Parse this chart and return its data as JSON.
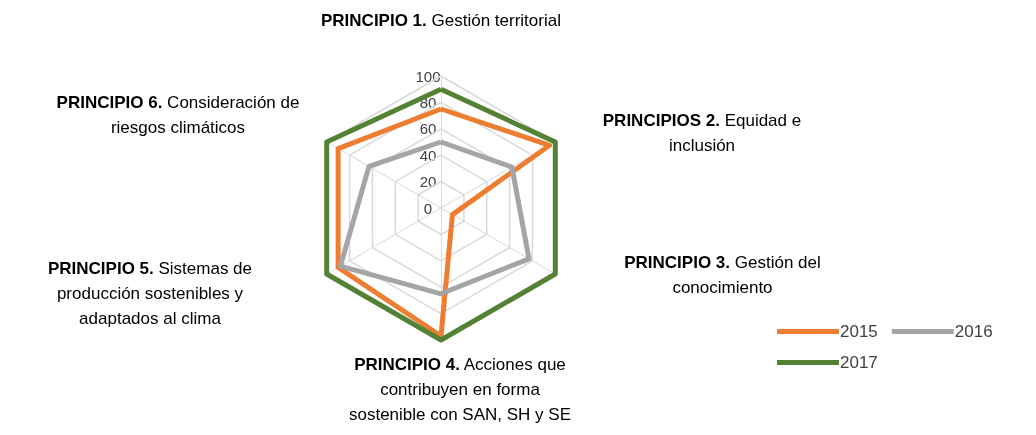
{
  "chart_data": {
    "type": "radar",
    "categories": [
      "PRINCIPIO 1. Gestión territorial",
      "PRINCIPIOS 2. Equidad e inclusión",
      "PRINCIPIO 3. Gestión del conocimiento",
      "PRINCIPIO 4. Acciones que contribuyen en forma sostenible con SAN, SH y SE",
      "PRINCIPIO 5. Sistemas de producción sostenibles y adaptados al clima",
      "PRINCIPIO 6. Consideración de riesgos climáticos"
    ],
    "series": [
      {
        "name": "2015",
        "color": "#ed7d31",
        "values": [
          75,
          95,
          10,
          97,
          90,
          90
        ]
      },
      {
        "name": "2016",
        "color": "#a5a5a5",
        "values": [
          50,
          62,
          77,
          65,
          88,
          63
        ]
      },
      {
        "name": "2017",
        "color": "#548235",
        "values": [
          90,
          100,
          100,
          100,
          100,
          100
        ]
      }
    ],
    "ylim": [
      0,
      100
    ],
    "yticks": [
      0,
      20,
      40,
      60,
      80,
      100
    ],
    "legend": "bottom right",
    "marker": "none"
  }
}
